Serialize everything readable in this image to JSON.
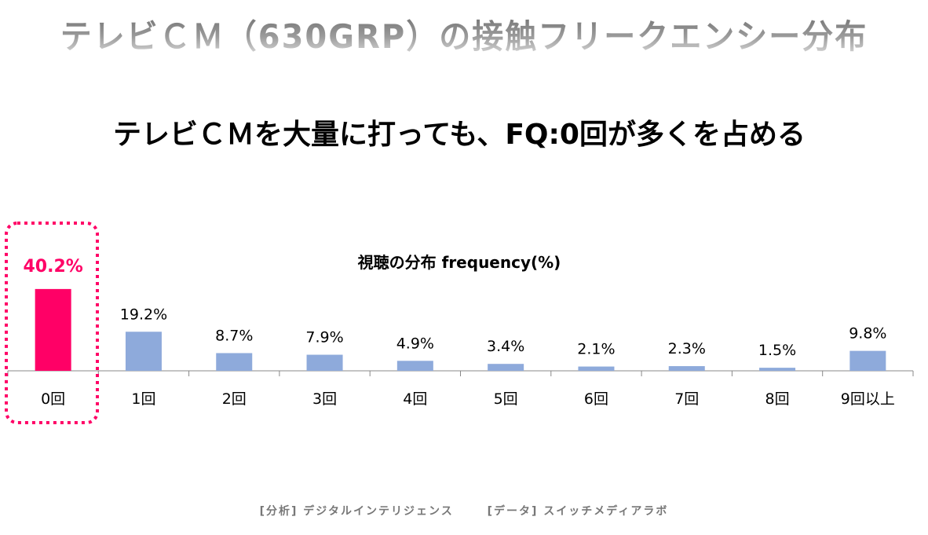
{
  "title": "テレビＣＭ（630GRP）の接触フリークエンシー分布",
  "subtitle": "テレビＣＭを大量に打っても、FQ:0回が多くを占める",
  "footer": {
    "analysis": "[分析] デジタルインテリジェンス",
    "data": "[データ] スイッチメディアラボ"
  },
  "chart_data": {
    "type": "bar",
    "title": "視聴の分布 frequency(%)",
    "categories": [
      "0回",
      "1回",
      "2回",
      "3回",
      "4回",
      "5回",
      "6回",
      "7回",
      "8回",
      "9回以上"
    ],
    "values": [
      40.2,
      19.2,
      8.7,
      7.9,
      4.9,
      3.4,
      2.1,
      2.3,
      1.5,
      9.8
    ],
    "data_labels": [
      "40.2%",
      "19.2%",
      "8.7%",
      "7.9%",
      "4.9%",
      "3.4%",
      "2.1%",
      "2.3%",
      "1.5%",
      "9.8%"
    ],
    "highlight_index": 0,
    "colors": {
      "highlight": "#ff0066",
      "bar": "#8eaadb",
      "axis": "#888888"
    },
    "grid": false
  }
}
